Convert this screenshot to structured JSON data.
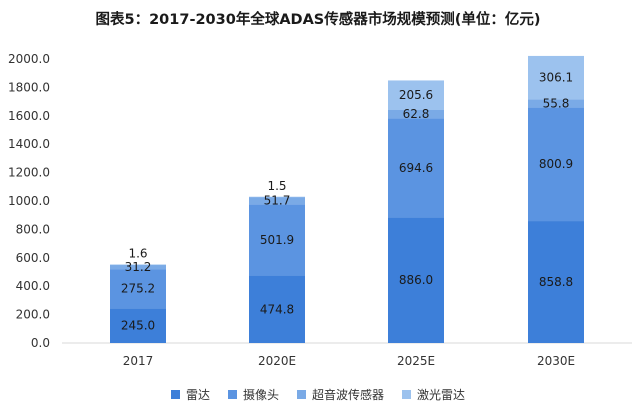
{
  "title": "图表5：2017-2030年全球ADAS传感器市场规模预测(单位：亿元)",
  "chart_data": {
    "type": "bar",
    "stacked": true,
    "categories": [
      "2017",
      "2020E",
      "2025E",
      "2030E"
    ],
    "series": [
      {
        "name": "雷达",
        "values": [
          245.0,
          474.8,
          886.0,
          858.8
        ],
        "color": "#3d7fd9"
      },
      {
        "name": "摄像头",
        "values": [
          275.2,
          501.9,
          694.6,
          800.9
        ],
        "color": "#5b94e1"
      },
      {
        "name": "超音波传感器",
        "values": [
          31.2,
          51.7,
          62.8,
          55.8
        ],
        "color": "#7aaae6"
      },
      {
        "name": "激光雷达",
        "values": [
          1.6,
          1.5,
          205.6,
          306.1
        ],
        "color": "#9cc2ee"
      }
    ],
    "ylim": [
      0,
      2000
    ],
    "yticks": [
      "0.0",
      "200.0",
      "400.0",
      "600.0",
      "800.0",
      "1000.0",
      "1200.0",
      "1400.0",
      "1600.0",
      "1800.0",
      "2000.0"
    ],
    "data_labels": [
      [
        "245.0",
        "474.8",
        "886.0",
        "858.8"
      ],
      [
        "275.2",
        "501.9",
        "694.6",
        "800.9"
      ],
      [
        "31.2",
        "51.7",
        "62.8",
        "55.8"
      ],
      [
        "1.6",
        "1.5",
        "205.6",
        "306.1"
      ]
    ],
    "legend_position": "bottom",
    "grid": false
  }
}
